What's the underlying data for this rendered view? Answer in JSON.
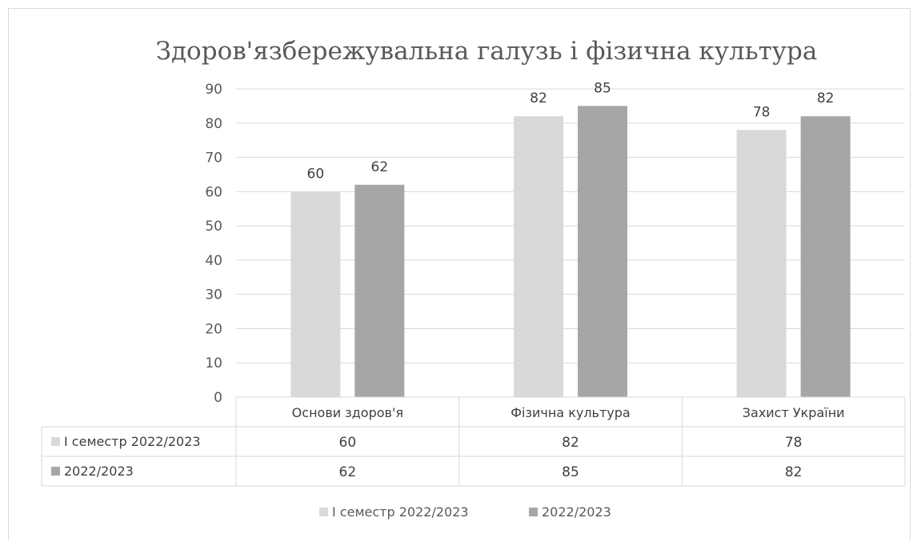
{
  "chart_data": {
    "type": "bar",
    "title": "Здоров'язбережувальна галузь і фізична культура",
    "categories": [
      "Основи здоров'я",
      "Фізична культура",
      "Захист України"
    ],
    "series": [
      {
        "name": "І семестр 2022/2023",
        "values": [
          60,
          82,
          78
        ],
        "color": "#d9d9d9"
      },
      {
        "name": "2022/2023",
        "values": [
          62,
          85,
          82
        ],
        "color": "#a6a6a6"
      }
    ],
    "ylim": [
      0,
      90
    ],
    "yticks": [
      0,
      10,
      20,
      30,
      40,
      50,
      60,
      70,
      80,
      90
    ],
    "grid": true,
    "data_table": true,
    "legend": "bottom",
    "gridline_color": "#d9d9d9",
    "text_color": "#595959"
  }
}
